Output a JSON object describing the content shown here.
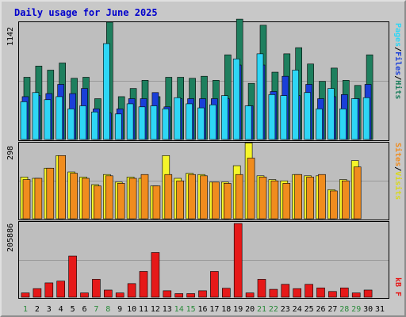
{
  "title": "Daily usage for June 2025",
  "colors": {
    "hits": "#1e7f5e",
    "files": "#1a3fd8",
    "pages": "#2ed6f5",
    "visits": "#f5f52a",
    "sites": "#f08c1e",
    "kbf": "#e61919",
    "weekend_tick": "#2a8a3a",
    "weekday_tick": "#000000"
  },
  "panels": {
    "hits_max_label": "1142",
    "visits_max_label": "298",
    "kb_max_label": "205886",
    "hits_legend": [
      "Pages",
      "Files",
      "Hits"
    ],
    "visits_legend": [
      "Sites",
      "Visits"
    ],
    "kb_legend": [
      "kB F"
    ]
  },
  "chart_data": [
    {
      "type": "bar",
      "title": "Daily usage for June 2025",
      "categories": [
        "1",
        "2",
        "3",
        "4",
        "5",
        "6",
        "7",
        "8",
        "9",
        "10",
        "11",
        "12",
        "13",
        "14",
        "15",
        "16",
        "17",
        "18",
        "19",
        "20",
        "21",
        "22",
        "23",
        "24",
        "25",
        "26",
        "27",
        "28",
        "29",
        "30",
        "31"
      ],
      "weekend_days": [
        "1",
        "7",
        "8",
        "14",
        "15",
        "21",
        "22",
        "28",
        "29"
      ],
      "ylim": [
        0,
        1142
      ],
      "series": [
        {
          "name": "Hits",
          "values": [
            610,
            720,
            680,
            750,
            600,
            610,
            400,
            1150,
            420,
            500,
            580,
            420,
            610,
            610,
            600,
            620,
            580,
            830,
            1180,
            550,
            1120,
            660,
            840,
            900,
            740,
            570,
            700,
            580,
            530,
            830,
            null
          ]
        },
        {
          "name": "Files",
          "values": [
            420,
            430,
            450,
            540,
            450,
            500,
            300,
            260,
            300,
            400,
            400,
            460,
            320,
            400,
            400,
            400,
            400,
            400,
            730,
            330,
            730,
            470,
            620,
            430,
            540,
            400,
            420,
            440,
            400,
            540,
            null
          ]
        },
        {
          "name": "Pages",
          "values": [
            370,
            460,
            390,
            420,
            300,
            330,
            270,
            940,
            250,
            350,
            320,
            330,
            300,
            410,
            350,
            310,
            340,
            430,
            790,
            330,
            840,
            440,
            430,
            680,
            460,
            300,
            500,
            300,
            400,
            410,
            null
          ]
        }
      ]
    },
    {
      "type": "bar",
      "ylim": [
        0,
        298
      ],
      "series": [
        {
          "name": "Visits",
          "values": [
            165,
            160,
            200,
            250,
            185,
            165,
            135,
            175,
            145,
            165,
            160,
            130,
            250,
            160,
            180,
            175,
            145,
            145,
            210,
            300,
            170,
            155,
            150,
            175,
            170,
            170,
            115,
            155,
            230,
            null,
            null
          ]
        },
        {
          "name": "Sites",
          "values": [
            155,
            160,
            200,
            250,
            180,
            160,
            130,
            170,
            140,
            160,
            175,
            130,
            175,
            150,
            175,
            170,
            145,
            140,
            175,
            240,
            165,
            150,
            140,
            175,
            165,
            175,
            110,
            150,
            205,
            null,
            null
          ]
        }
      ]
    },
    {
      "type": "bar",
      "ylim": [
        0,
        205886
      ],
      "series": [
        {
          "name": "kB F",
          "values": [
            12000,
            24000,
            40000,
            45000,
            115000,
            12000,
            50000,
            20000,
            12000,
            38000,
            72000,
            125000,
            18000,
            10000,
            10000,
            18000,
            72000,
            25000,
            205886,
            12000,
            50000,
            22000,
            36000,
            24000,
            36000,
            26000,
            16000,
            26000,
            12000,
            20000,
            null
          ]
        }
      ]
    }
  ]
}
